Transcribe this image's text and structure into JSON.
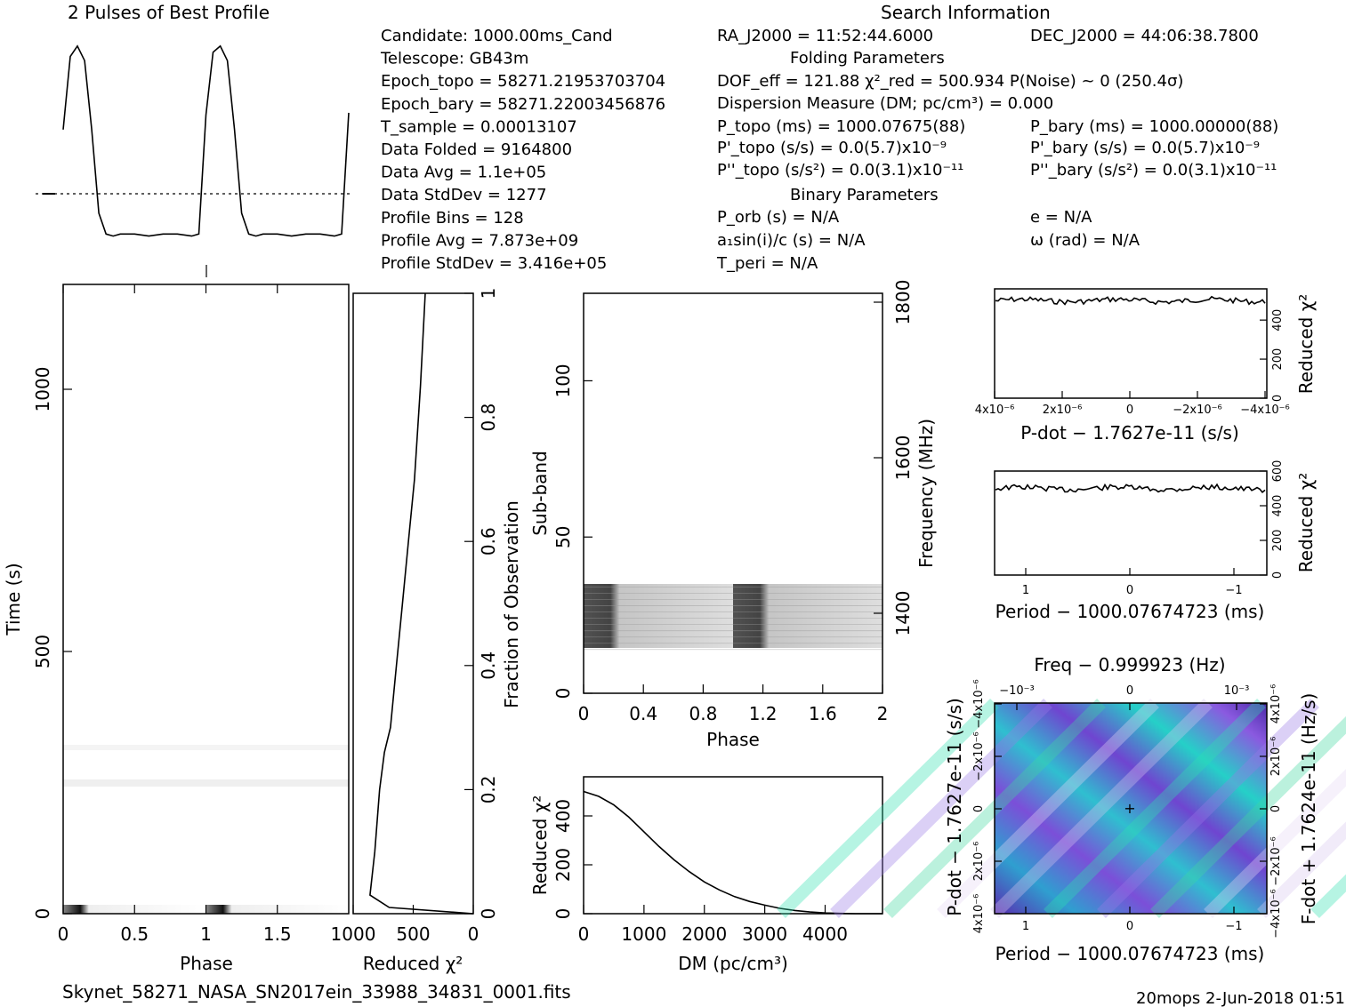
{
  "footer": {
    "filename": "Skynet_58271_NASA_SN2017ein_33988_34831_0001.fits",
    "stamp": "20mops  2-Jun-2018 01:51"
  },
  "info": {
    "profile_title": "2 Pulses of Best Profile",
    "search_title": "Search Information",
    "folding_title": "Folding Parameters",
    "binary_title": "Binary Parameters",
    "left_lines": [
      "Candidate:  1000.00ms_Cand",
      "Telescope:  GB43m",
      "Epoch_topo = 58271.21953703704",
      "Epoch_bary = 58271.22003456876",
      "T_sample        =  0.00013107",
      "Data Folded     =  9164800",
      "Data Avg        =  1.1e+05",
      "Data StdDev     =  1277",
      "Profile Bins    =  128",
      "Profile Avg     =  7.873e+09",
      "Profile StdDev  =  3.416e+05"
    ],
    "ra": "RA_J2000 = 11:52:44.6000",
    "dec": "DEC_J2000 = 44:06:38.7800",
    "dof": "DOF_eff = 121.88  χ²_red = 500.934   P(Noise) ~ 0    (250.4σ)",
    "dm": "Dispersion Measure (DM; pc/cm³) = 0.000",
    "ptopo": "P_topo (ms) =  1000.07675(88)",
    "pbary": "P_bary (ms) =  1000.00000(88)",
    "pdtopo": "P'_topo (s/s) = 0.0(5.7)x10⁻⁹",
    "pdbary": "P'_bary (s/s) = 0.0(5.7)x10⁻⁹",
    "pddtopo": "P''_topo (s/s²) = 0.0(3.1)x10⁻¹¹",
    "pddbary": "P''_bary (s/s²) = 0.0(3.1)x10⁻¹¹",
    "porb": "P_orb (s) = N/A",
    "asini": "a₁sin(i)/c (s) = N/A",
    "tperi": "T_peri = N/A",
    "ecc": "e = N/A",
    "omega": "ω (rad) = N/A"
  },
  "chart_data": [
    {
      "type": "line",
      "name": "profile",
      "title": "2 Pulses of Best Profile",
      "x": [
        0.0,
        0.05,
        0.1,
        0.15,
        0.2,
        0.25,
        0.3,
        0.35,
        0.4,
        0.5,
        0.6,
        0.7,
        0.8,
        0.9,
        0.95,
        1.0,
        1.05,
        1.1,
        1.15,
        1.2,
        1.25,
        1.3,
        1.35,
        1.4,
        1.5,
        1.6,
        1.7,
        1.8,
        1.9,
        1.95,
        2.0
      ],
      "y": [
        0.55,
        0.9,
        0.95,
        0.88,
        0.55,
        0.15,
        0.05,
        0.04,
        0.05,
        0.05,
        0.04,
        0.05,
        0.05,
        0.04,
        0.05,
        0.62,
        0.92,
        0.95,
        0.88,
        0.55,
        0.15,
        0.05,
        0.04,
        0.05,
        0.05,
        0.04,
        0.05,
        0.05,
        0.04,
        0.05,
        0.63
      ],
      "mean_level": 0.3
    },
    {
      "type": "heatmap",
      "name": "time-phase",
      "xlabel": "Phase",
      "ylabel": "Time (s)",
      "xlim": [
        0,
        2
      ],
      "ylim": [
        0,
        1200
      ],
      "xticks": [
        "0",
        "0.5",
        "1",
        "1.5"
      ],
      "yticks": [
        "0",
        "500",
        "1000"
      ],
      "xticks_values": [
        0,
        0.5,
        1,
        1.5
      ],
      "yticks_values": [
        0,
        500,
        1000
      ]
    },
    {
      "type": "line",
      "name": "time-chi",
      "xlabel": "Reduced χ²",
      "ylabel": "Fraction of Observation",
      "xlim": [
        1000,
        0
      ],
      "ylim": [
        0,
        1
      ],
      "xticks": [
        "1000",
        "500",
        "0"
      ],
      "xticks_values": [
        1000,
        500,
        0
      ],
      "yticks": [
        "0",
        "0.2",
        "0.4",
        "0.6",
        "0.8",
        "1"
      ],
      "yticks_values": [
        0,
        0.2,
        0.4,
        0.6,
        0.8,
        1
      ],
      "x": [
        0,
        700,
        860,
        820,
        780,
        740,
        690,
        640,
        590,
        540,
        490,
        440,
        400
      ],
      "y": [
        0,
        0.01,
        0.03,
        0.1,
        0.2,
        0.26,
        0.3,
        0.4,
        0.5,
        0.6,
        0.7,
        0.85,
        1.0
      ]
    },
    {
      "type": "heatmap",
      "name": "subband-phase",
      "xlabel": "Phase",
      "ylabel": "Sub-band",
      "y2label": "Frequency (MHz)",
      "xlim": [
        0,
        2
      ],
      "ylim": [
        0,
        128
      ],
      "xticks": [
        "0",
        "0.4",
        "0.8",
        "1.2",
        "1.6",
        "2"
      ],
      "xticks_values": [
        0,
        0.4,
        0.8,
        1.2,
        1.6,
        2
      ],
      "yticks": [
        "0",
        "50",
        "100"
      ],
      "yticks_values": [
        0,
        50,
        100
      ],
      "y2ticks": [
        "1400",
        "1600",
        "1800"
      ],
      "band_range": [
        14,
        35
      ],
      "pulse_phases": [
        [
          0.0,
          0.18
        ],
        [
          1.0,
          1.18
        ]
      ]
    },
    {
      "type": "line",
      "name": "dm-chi",
      "xlabel": "DM (pc/cm³)",
      "ylabel": "Reduced χ²",
      "xlim": [
        0,
        4950
      ],
      "ylim": [
        0,
        560
      ],
      "xticks": [
        "0",
        "1000",
        "2000",
        "3000",
        "4000"
      ],
      "xticks_values": [
        0,
        1000,
        2000,
        3000,
        4000
      ],
      "yticks": [
        "0",
        "200",
        "400"
      ],
      "yticks_values": [
        0,
        200,
        400
      ],
      "x": [
        0,
        250,
        500,
        750,
        1000,
        1250,
        1500,
        1750,
        2000,
        2250,
        2500,
        2750,
        3000,
        3250,
        3500,
        3750,
        4000,
        4250,
        4500,
        4750,
        4950
      ],
      "y": [
        500,
        480,
        445,
        395,
        335,
        275,
        220,
        172,
        130,
        97,
        70,
        50,
        35,
        22,
        13,
        7,
        3,
        1,
        0,
        0,
        0
      ]
    },
    {
      "type": "line",
      "name": "pdot-chi",
      "xlabel": "P-dot − 1.7627e-11 (s/s)",
      "ylabel": "Reduced χ²",
      "xticks": [
        "4x10⁻⁶",
        "2x10⁻⁶",
        "0",
        "−2x10⁻⁶",
        "−4x10⁻⁶"
      ],
      "yticks": [
        "0",
        "200",
        "400"
      ],
      "ylim": [
        0,
        560
      ],
      "level": 500
    },
    {
      "type": "line",
      "name": "period-chi",
      "xlabel": "Period − 1000.07674723 (ms)",
      "ylabel": "Reduced χ²",
      "xticks": [
        "1",
        "0",
        "−1"
      ],
      "yticks": [
        "0",
        "200",
        "400",
        "600"
      ],
      "ylim": [
        0,
        600
      ],
      "level": 500
    },
    {
      "type": "heatmap",
      "name": "ppdot-plane",
      "title": "Freq − 0.999923 (Hz)",
      "xlabel": "Period − 1000.07674723 (ms)",
      "ylabel": "P-dot − 1.7627e-11 (s/s)",
      "y2label": "F-dot + 1.7624e-11 (Hz/s)",
      "xticks": [
        "1",
        "0",
        "−1"
      ],
      "x2ticks": [
        "−10⁻³",
        "0",
        "10⁻³"
      ],
      "yticks": [
        "4x10⁻⁶",
        "2x10⁻⁶",
        "0",
        "−2x10⁻⁶",
        "−4x10⁻⁶"
      ],
      "y2ticks": [
        "−4x10⁻⁶",
        "−2x10⁻⁶",
        "0",
        "2x10⁻⁶",
        "4x10⁻⁶"
      ]
    }
  ]
}
